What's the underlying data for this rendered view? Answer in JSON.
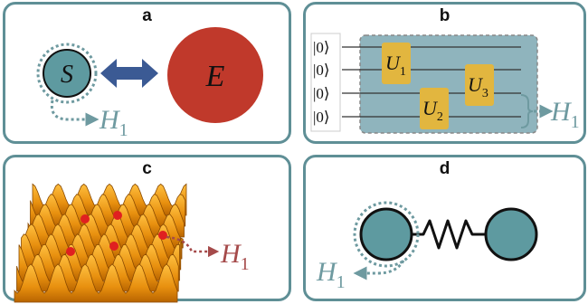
{
  "panels": {
    "a": {
      "label": "a",
      "system_symbol": "S",
      "environment_symbol": "E",
      "hamiltonian": "H",
      "hamiltonian_sub": "1",
      "colors": {
        "system": "#5e9aa0",
        "environment": "#c0392b",
        "arrow": "#3b5a94",
        "accent": "#6e9aa0"
      }
    },
    "b": {
      "label": "b",
      "kets": [
        "|0⟩",
        "|0⟩",
        "|0⟩",
        "|0⟩"
      ],
      "gates": [
        {
          "symbol": "U",
          "sub": "1"
        },
        {
          "symbol": "U",
          "sub": "2"
        },
        {
          "symbol": "U",
          "sub": "3"
        }
      ],
      "hamiltonian": "H",
      "hamiltonian_sub": "1",
      "colors": {
        "circuit_bg": "#8fb4bd",
        "gate": "#e2b63f",
        "accent": "#6e9aa0"
      }
    },
    "c": {
      "label": "c",
      "hamiltonian": "H",
      "hamiltonian_sub": "1",
      "colors": {
        "surface": "#f0a020",
        "particle": "#e02020",
        "accent": "#a54a4a"
      }
    },
    "d": {
      "label": "d",
      "hamiltonian": "H",
      "hamiltonian_sub": "1",
      "colors": {
        "mass": "#5e9aa0",
        "spring": "#111111",
        "accent": "#6e9aa0"
      }
    }
  }
}
